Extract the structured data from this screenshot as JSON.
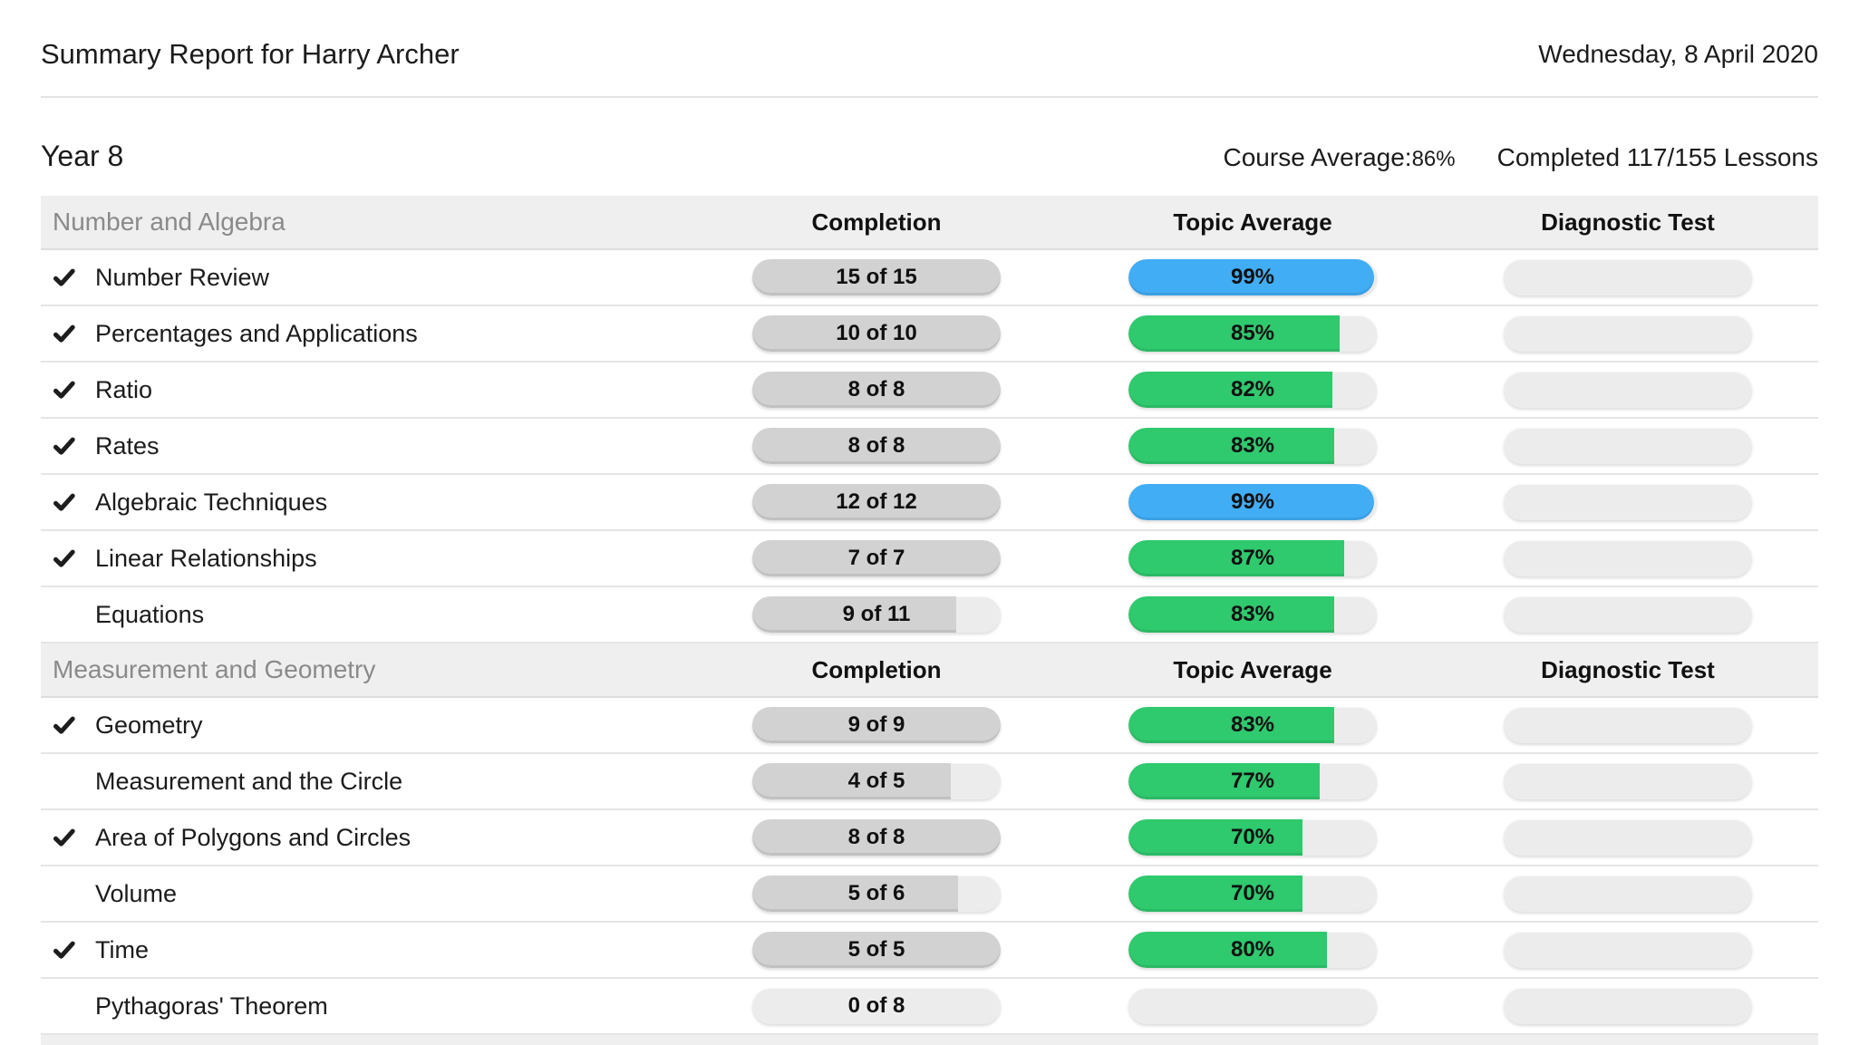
{
  "header": {
    "title": "Summary Report for Harry Archer",
    "date": "Wednesday, 8 April 2020"
  },
  "course": {
    "name": "Year 8",
    "average_label": "Course Average:",
    "average_value": "86%",
    "completed_label": "Completed 117/155 Lessons"
  },
  "icons": {
    "completed_check": "check-mark"
  },
  "colors": {
    "green": "#2fc96e",
    "blue": "#41adf5",
    "gray_fill": "#d2d2d2",
    "track": "#ececec",
    "band_bg": "#f0efef"
  },
  "table": {
    "columns": [
      "Completion",
      "Topic Average",
      "Diagnostic Test"
    ],
    "sections": [
      {
        "name": "Number and Algebra",
        "rows": [
          {
            "topic": "Number Review",
            "completed": true,
            "completion_label": "15 of 15",
            "completion_pct": 100,
            "average_label": "99%",
            "average_pct": 99,
            "average_style": "blue",
            "diagnostic_label": ""
          },
          {
            "topic": "Percentages and Applications",
            "completed": true,
            "completion_label": "10 of 10",
            "completion_pct": 100,
            "average_label": "85%",
            "average_pct": 85,
            "average_style": "green",
            "diagnostic_label": ""
          },
          {
            "topic": "Ratio",
            "completed": true,
            "completion_label": "8 of 8",
            "completion_pct": 100,
            "average_label": "82%",
            "average_pct": 82,
            "average_style": "green",
            "diagnostic_label": ""
          },
          {
            "topic": "Rates",
            "completed": true,
            "completion_label": "8 of 8",
            "completion_pct": 100,
            "average_label": "83%",
            "average_pct": 83,
            "average_style": "green",
            "diagnostic_label": ""
          },
          {
            "topic": "Algebraic Techniques",
            "completed": true,
            "completion_label": "12 of 12",
            "completion_pct": 100,
            "average_label": "99%",
            "average_pct": 99,
            "average_style": "blue",
            "diagnostic_label": ""
          },
          {
            "topic": "Linear Relationships",
            "completed": true,
            "completion_label": "7 of 7",
            "completion_pct": 100,
            "average_label": "87%",
            "average_pct": 87,
            "average_style": "green",
            "diagnostic_label": ""
          },
          {
            "topic": "Equations",
            "completed": false,
            "completion_label": "9 of 11",
            "completion_pct": 82,
            "average_label": "83%",
            "average_pct": 83,
            "average_style": "green",
            "diagnostic_label": ""
          }
        ]
      },
      {
        "name": "Measurement and Geometry",
        "rows": [
          {
            "topic": "Geometry",
            "completed": true,
            "completion_label": "9 of 9",
            "completion_pct": 100,
            "average_label": "83%",
            "average_pct": 83,
            "average_style": "green",
            "diagnostic_label": ""
          },
          {
            "topic": "Measurement and the Circle",
            "completed": false,
            "completion_label": "4 of 5",
            "completion_pct": 80,
            "average_label": "77%",
            "average_pct": 77,
            "average_style": "green",
            "diagnostic_label": ""
          },
          {
            "topic": "Area of Polygons and Circles",
            "completed": true,
            "completion_label": "8 of 8",
            "completion_pct": 100,
            "average_label": "70%",
            "average_pct": 70,
            "average_style": "green",
            "diagnostic_label": ""
          },
          {
            "topic": "Volume",
            "completed": false,
            "completion_label": "5 of 6",
            "completion_pct": 83,
            "average_label": "70%",
            "average_pct": 70,
            "average_style": "green",
            "diagnostic_label": ""
          },
          {
            "topic": "Time",
            "completed": true,
            "completion_label": "5 of 5",
            "completion_pct": 100,
            "average_label": "80%",
            "average_pct": 80,
            "average_style": "green",
            "diagnostic_label": ""
          },
          {
            "topic": "Pythagoras' Theorem",
            "completed": false,
            "completion_label": "0 of 8",
            "completion_pct": 0,
            "average_label": "",
            "average_pct": 0,
            "average_style": "none",
            "diagnostic_label": ""
          }
        ]
      }
    ],
    "next_section_partial": true
  }
}
